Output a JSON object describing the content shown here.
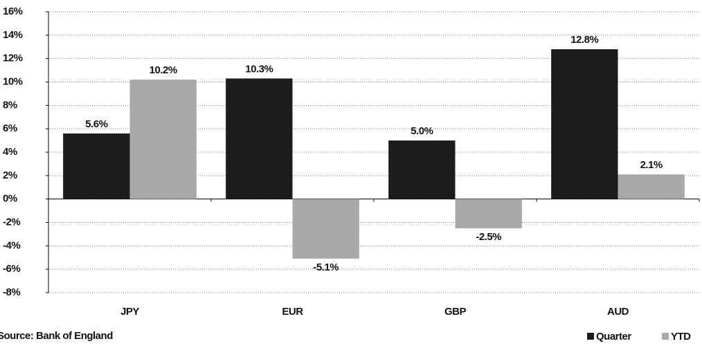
{
  "chart_data": {
    "type": "bar",
    "categories": [
      "JPY",
      "EUR",
      "GBP",
      "AUD"
    ],
    "series": [
      {
        "name": "Quarter",
        "color": "#1c1c1c",
        "values": [
          5.6,
          10.3,
          5.0,
          12.8
        ],
        "value_labels": [
          "5.6%",
          "10.3%",
          "5.0%",
          "12.8%"
        ]
      },
      {
        "name": "YTD",
        "color": "#a9a9a9",
        "values": [
          10.2,
          -5.1,
          -2.5,
          2.1
        ],
        "value_labels": [
          "10.2%",
          "-5.1%",
          "-2.5%",
          "2.1%"
        ]
      }
    ],
    "ylim": [
      -8,
      16
    ],
    "yticks": [
      {
        "value": -8,
        "label": "-8%"
      },
      {
        "value": -6,
        "label": "-6%"
      },
      {
        "value": -4,
        "label": "-4%"
      },
      {
        "value": -2,
        "label": "-2%"
      },
      {
        "value": 0,
        "label": "0%"
      },
      {
        "value": 2,
        "label": "2%"
      },
      {
        "value": 4,
        "label": "4%"
      },
      {
        "value": 6,
        "label": "6%"
      },
      {
        "value": 8,
        "label": "8%"
      },
      {
        "value": 10,
        "label": "10%"
      },
      {
        "value": 12,
        "label": "12%"
      },
      {
        "value": 14,
        "label": "14%"
      },
      {
        "value": 16,
        "label": "16%"
      }
    ],
    "grid": true,
    "legend": "bottom-right",
    "source": "Source: Bank of England"
  }
}
